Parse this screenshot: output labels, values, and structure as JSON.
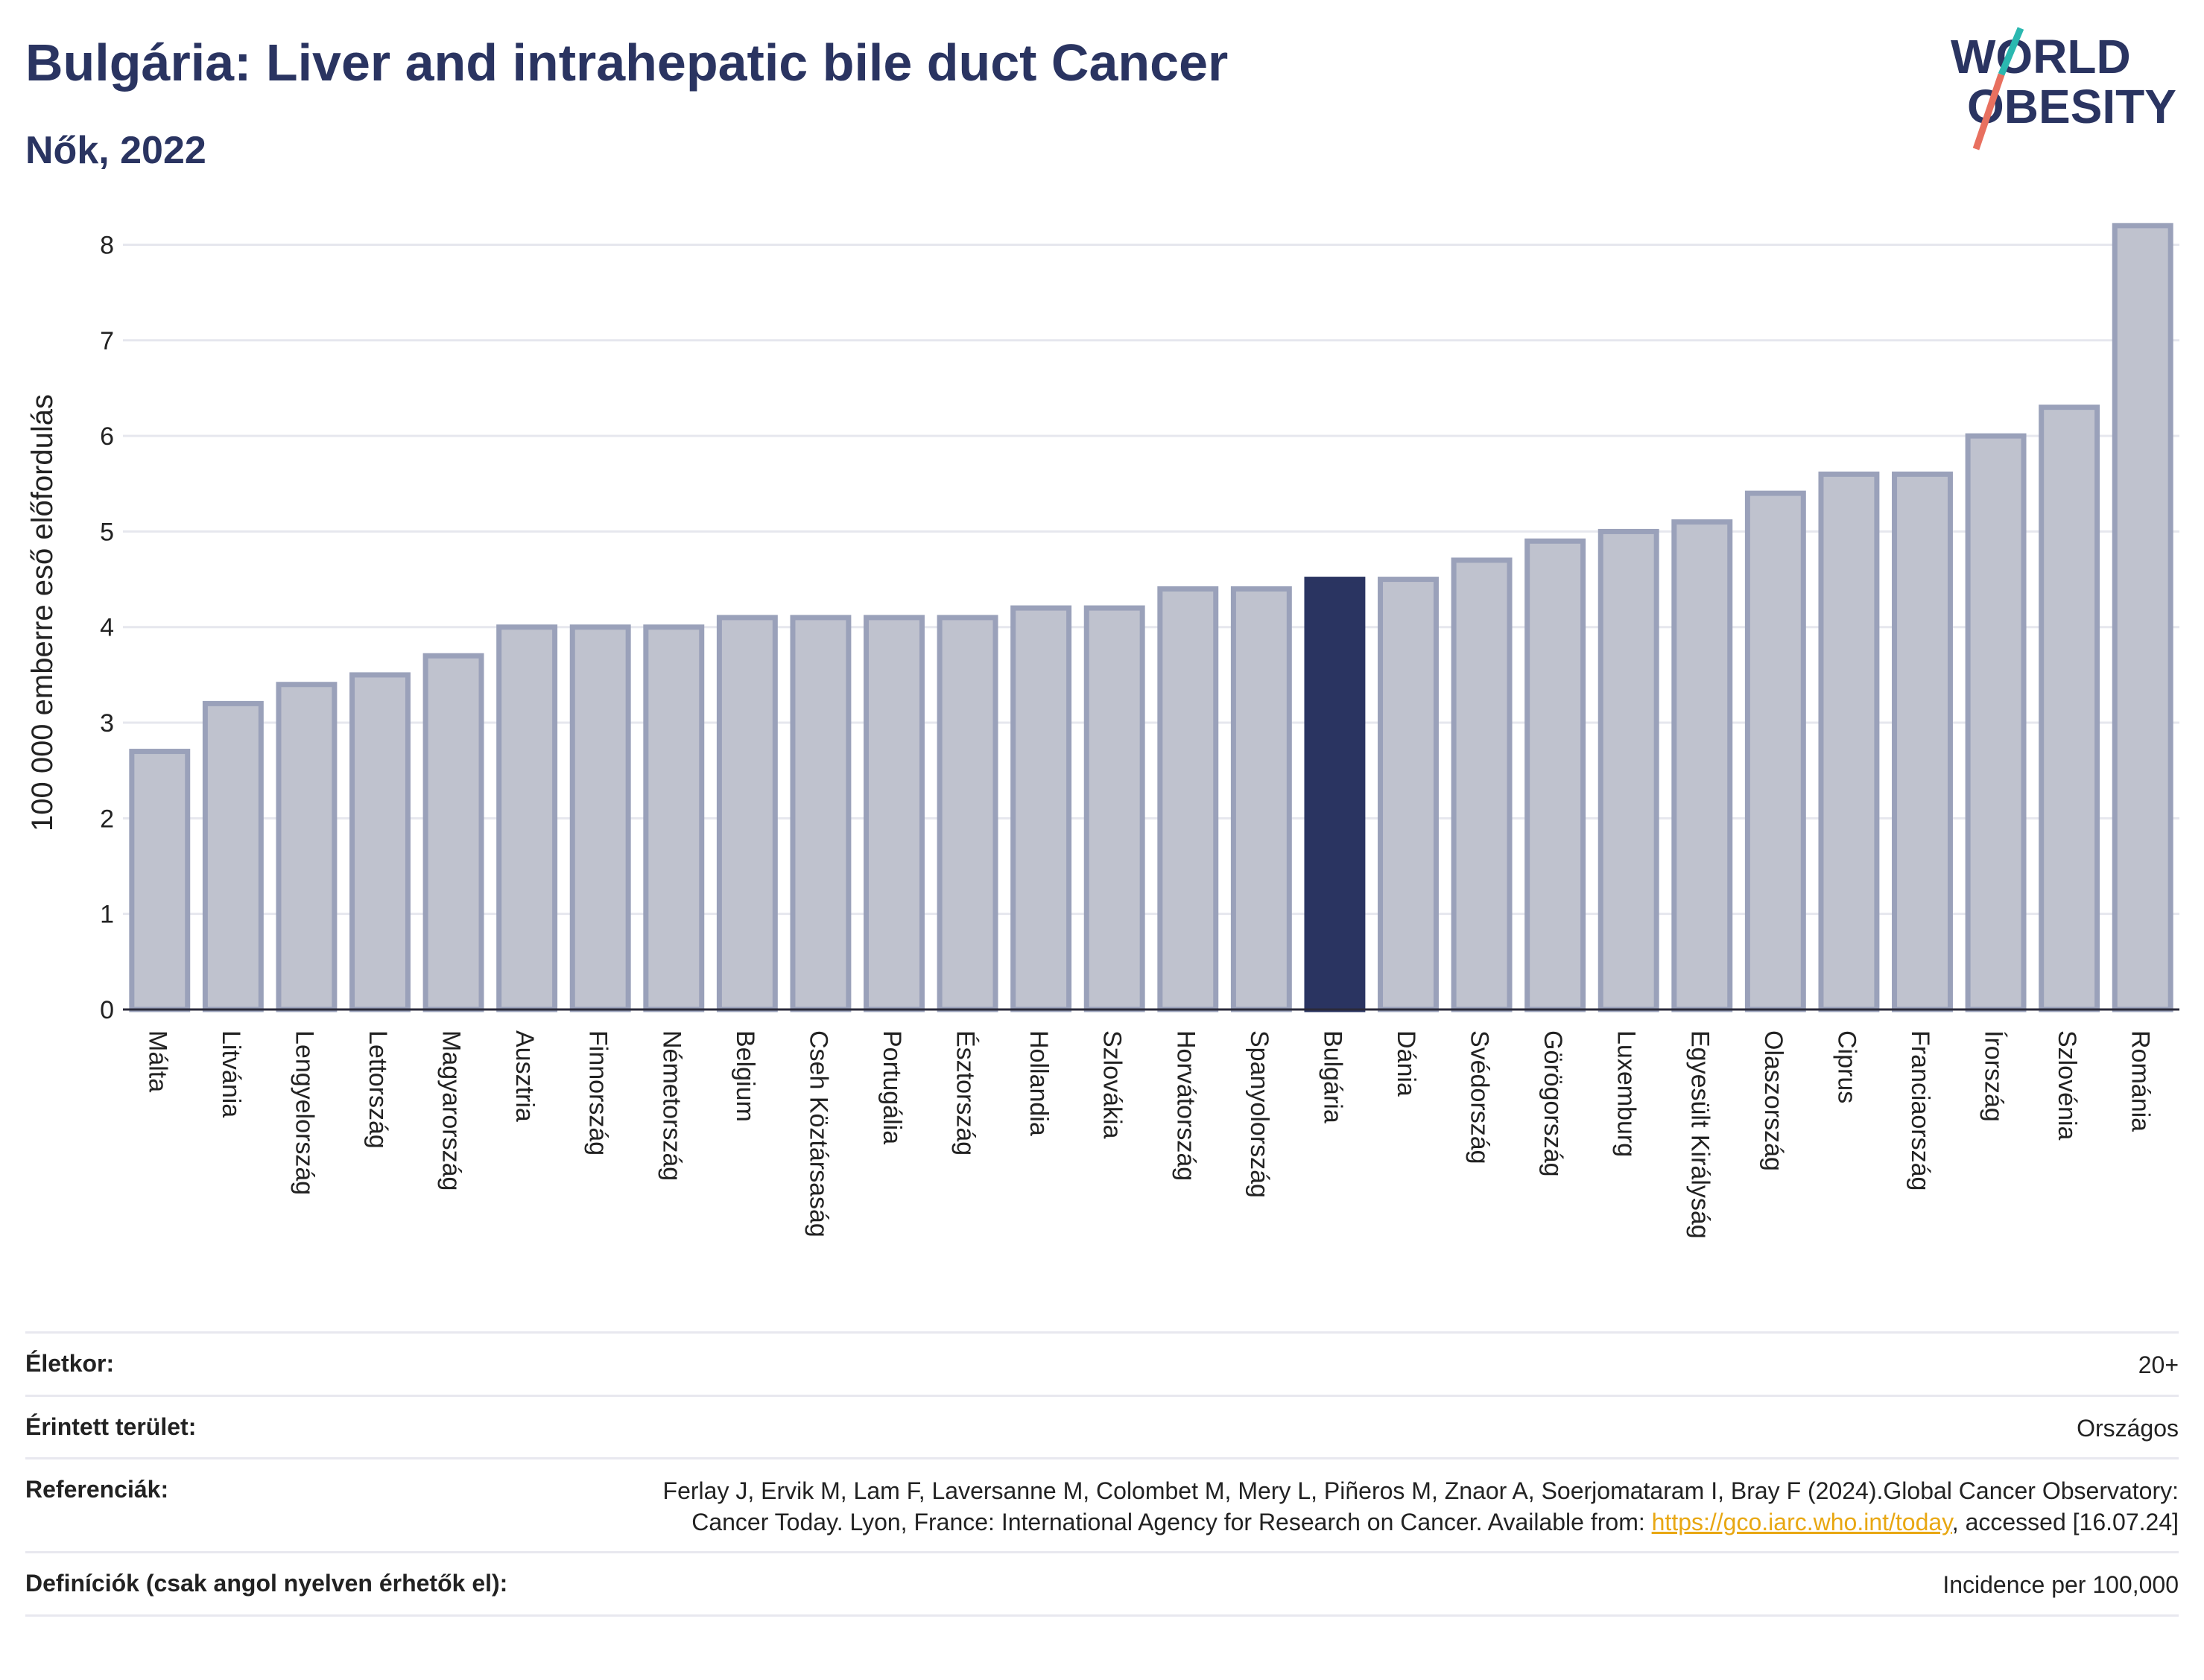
{
  "header": {
    "title": "Bulgária: Liver and intrahepatic bile duct Cancer",
    "subtitle": "Nők, 2022",
    "logo_line1": "WORLD",
    "logo_line2": "OBESITY"
  },
  "chart_data": {
    "type": "bar",
    "ylabel": "100 000 emberre eső előfordulás",
    "ylim": [
      0,
      8.3
    ],
    "yticks": [
      0,
      1,
      2,
      3,
      4,
      5,
      6,
      7,
      8
    ],
    "grid": true,
    "highlight": "Bulgária",
    "colors": {
      "bar": "#bfc2ce",
      "bar_edge": "#9aa1ba",
      "highlight": "#2a3461"
    },
    "categories": [
      "Málta",
      "Litvánia",
      "Lengyelország",
      "Lettország",
      "Magyarország",
      "Ausztria",
      "Finnország",
      "Németország",
      "Belgium",
      "Cseh Köztársaság",
      "Portugália",
      "Észtország",
      "Hollandia",
      "Szlovákia",
      "Horvátország",
      "Spanyolország",
      "Bulgária",
      "Dánia",
      "Svédország",
      "Görögország",
      "Luxemburg",
      "Egyesült Királyság",
      "Olaszország",
      "Ciprus",
      "Franciaország",
      "Írország",
      "Szlovénia",
      "Románia"
    ],
    "values": [
      2.7,
      3.2,
      3.4,
      3.5,
      3.7,
      4.0,
      4.0,
      4.0,
      4.1,
      4.1,
      4.1,
      4.1,
      4.2,
      4.2,
      4.4,
      4.4,
      4.5,
      4.5,
      4.7,
      4.9,
      5.0,
      5.1,
      5.4,
      5.6,
      5.6,
      6.0,
      6.3,
      8.2
    ]
  },
  "info": [
    {
      "label": "Életkor:",
      "value": "20+"
    },
    {
      "label": "Érintett terület:",
      "value": "Országos"
    },
    {
      "label": "Referenciák:",
      "value_pre": "Ferlay J, Ervik M, Lam F, Laversanne M, Colombet M, Mery L, Piñeros M, Znaor A, Soerjomataram I, Bray F (2024).Global Cancer Observatory: Cancer Today. Lyon, France: International Agency for Research on Cancer. Available from: ",
      "link": "https://gco.iarc.who.int/today",
      "value_post": ", accessed [16.07.24]"
    },
    {
      "label": "Definíciók (csak angol nyelven érhetők el):",
      "value": "Incidence per 100,000"
    }
  ]
}
